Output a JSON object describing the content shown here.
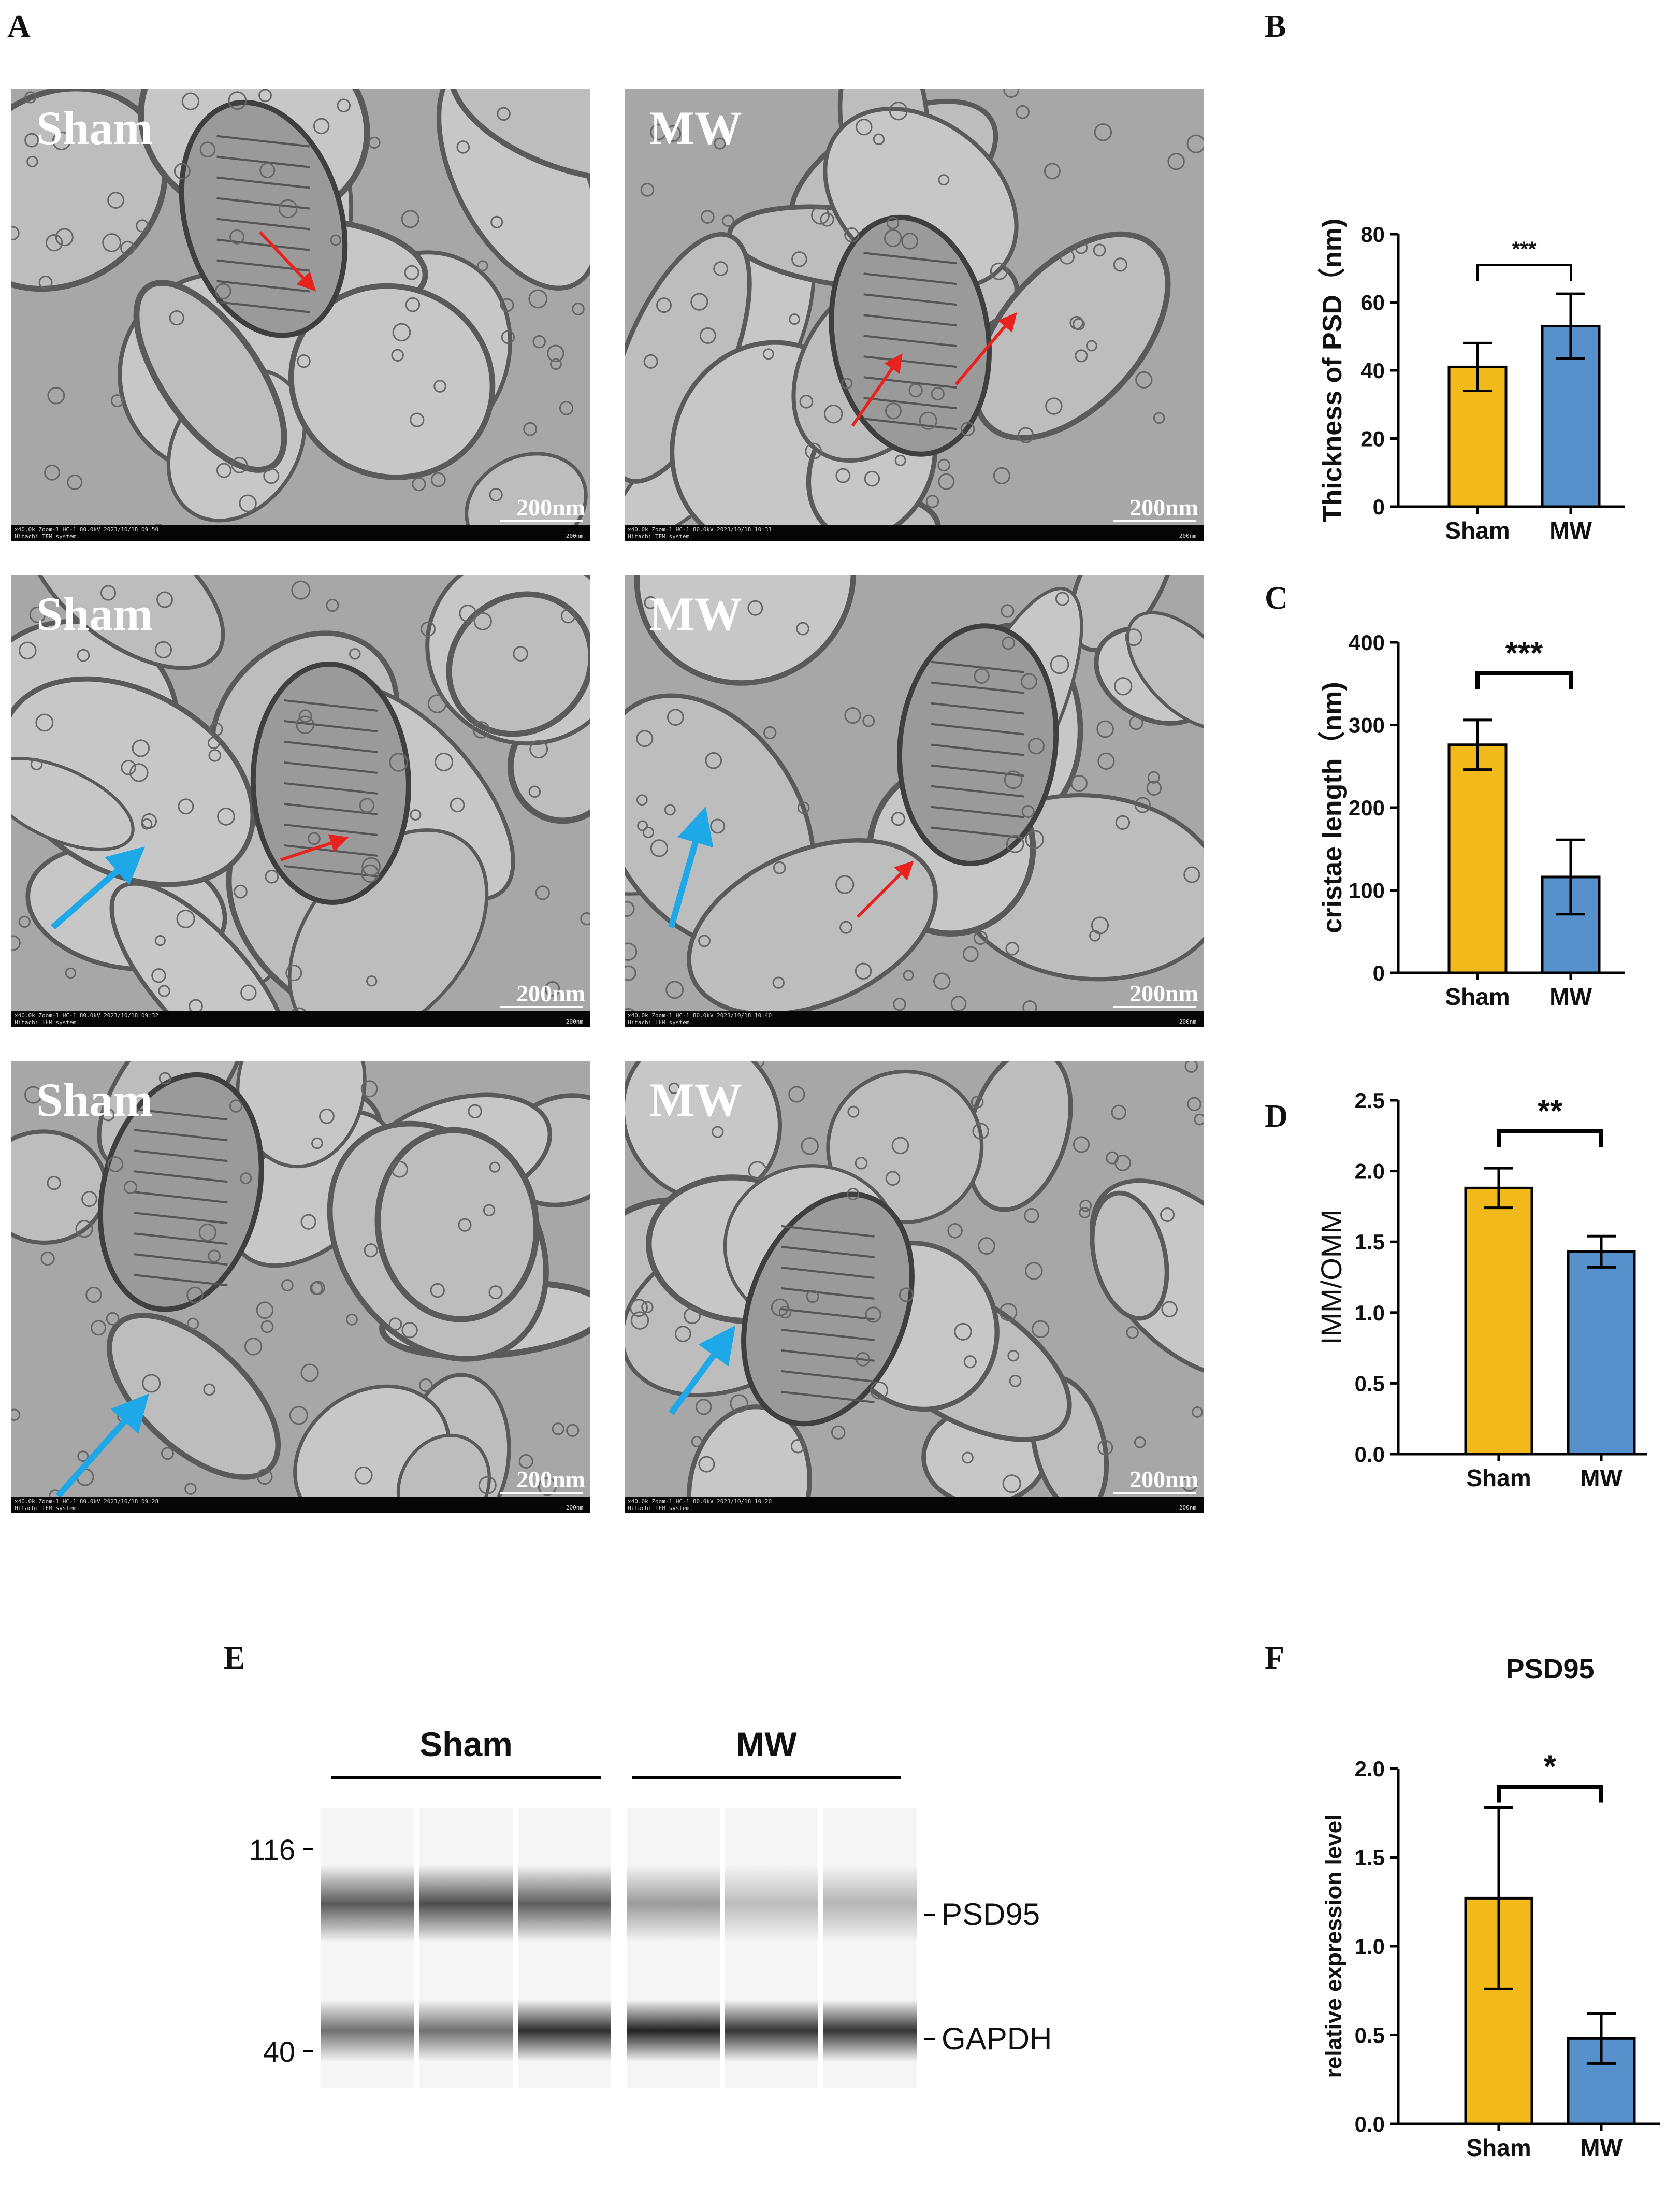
{
  "figure": {
    "panel_letters": [
      "A",
      "B",
      "C",
      "D",
      "E",
      "F"
    ]
  },
  "tem": {
    "scale_text": "200nm",
    "info_line1": [
      "x40.0k Zoom-1 HC-1 80.0kV 2023/10/18 09:50",
      "x40.0k Zoom-1 HC-1 80.0kV 2023/10/18 10:31",
      "x40.0k Zoom-1 HC-1 80.0kV 2023/10/18 09:32",
      "x40.0k Zoom-1 HC-1 80.0kV 2023/10/18 10:40",
      "x40.0k Zoom-1 HC-1 80.0kV 2023/10/18 09:28",
      "x40.0k Zoom-1 HC-1 80.0kV 2023/10/18 10:20"
    ],
    "info_line2": "Hitachi TEM system.",
    "info_right": "200nm",
    "labels": [
      "Sham",
      "MW",
      "Sham",
      "MW",
      "Sham",
      "MW"
    ]
  },
  "colors": {
    "sham": "#f2b91a",
    "mw": "#5691cc",
    "red_arrow": "#e8231d",
    "blue_arrow": "#1ea8e8"
  },
  "chart_data": [
    {
      "panel": "B",
      "type": "bar",
      "categories": [
        "Sham",
        "MW"
      ],
      "values": [
        41,
        53
      ],
      "errors": [
        7,
        9.5
      ],
      "ylabel": "Thickness of PSD（nm)",
      "ylim": [
        0,
        80
      ],
      "yticks": [
        0,
        20,
        40,
        60,
        80
      ],
      "significance": "***"
    },
    {
      "panel": "C",
      "type": "bar",
      "categories": [
        "Sham",
        "MW"
      ],
      "values": [
        276,
        116
      ],
      "errors": [
        30,
        45
      ],
      "ylabel": "cristae length（nm)",
      "ylim": [
        0,
        400
      ],
      "yticks": [
        0,
        100,
        200,
        300,
        400
      ],
      "significance": "***"
    },
    {
      "panel": "D",
      "type": "bar",
      "categories": [
        "Sham",
        "MW"
      ],
      "values": [
        1.88,
        1.43
      ],
      "errors": [
        0.14,
        0.11
      ],
      "ylabel": "IMM/OMM",
      "ylim": [
        0,
        2.5
      ],
      "yticks": [
        "0.0",
        "0.5",
        "1.0",
        "1.5",
        "2.0",
        "2.5"
      ],
      "significance": "**"
    },
    {
      "panel": "F",
      "type": "bar",
      "title": "PSD95",
      "categories": [
        "Sham",
        "MW"
      ],
      "values": [
        1.27,
        0.48
      ],
      "errors": [
        0.51,
        0.14
      ],
      "ylabel": "relative expression level",
      "ylim": [
        0,
        2
      ],
      "yticks": [
        "0.0",
        "0.5",
        "1.0",
        "1.5",
        "2.0"
      ],
      "significance": "*"
    }
  ],
  "western_blot": {
    "groups": [
      "Sham",
      "MW"
    ],
    "markers": [
      "116",
      "40"
    ],
    "bands": [
      "PSD95",
      "GAPDH"
    ],
    "psd95_intensity": [
      0.72,
      0.78,
      0.7,
      0.42,
      0.26,
      0.3
    ],
    "gapdh_intensity": [
      0.62,
      0.62,
      0.92,
      0.98,
      0.9,
      0.9
    ]
  }
}
